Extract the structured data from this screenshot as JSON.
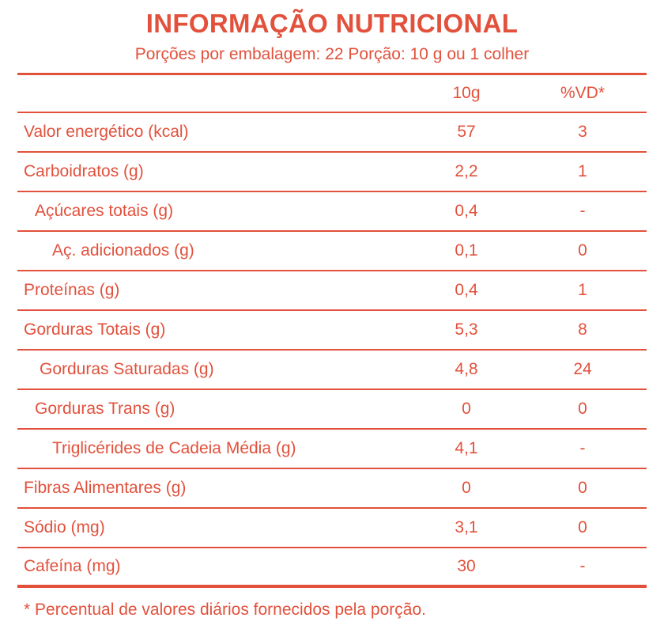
{
  "label": {
    "title": "INFORMAÇÃO NUTRICIONAL",
    "subtitle": "Porções por embalagem: 22  Porção: 10 g ou 1 colher",
    "columns": {
      "label": "",
      "value": "10g",
      "vd": "%VD*"
    },
    "rows": [
      {
        "label": "Valor energético (kcal)",
        "value": "57",
        "vd": "3"
      },
      {
        "label": "Carboidratos (g)",
        "value": "2,2",
        "vd": "1"
      },
      {
        "label": "Açúcares totais (g)",
        "value": "0,4",
        "vd": "-"
      },
      {
        "label": "Aç. adicionados (g)",
        "value": "0,1",
        "vd": "0"
      },
      {
        "label": "Proteínas (g)",
        "value": "0,4",
        "vd": "1"
      },
      {
        "label": "Gorduras Totais (g)",
        "value": "5,3",
        "vd": "8"
      },
      {
        "label": "Gorduras Saturadas (g)",
        "value": "4,8",
        "vd": "24"
      },
      {
        "label": "Gorduras Trans (g)",
        "value": "0",
        "vd": "0"
      },
      {
        "label": "Triglicérides de Cadeia Média (g)",
        "value": "4,1",
        "vd": "-"
      },
      {
        "label": "Fibras Alimentares (g)",
        "value": "0",
        "vd": "0"
      },
      {
        "label": "Sódio (mg)",
        "value": "3,1",
        "vd": "0"
      },
      {
        "label": "Cafeína (mg)",
        "value": "30",
        "vd": "-"
      }
    ],
    "footnote": "* Percentual de valores diários fornecidos pela porção.",
    "accent_color": "#e2513c"
  }
}
